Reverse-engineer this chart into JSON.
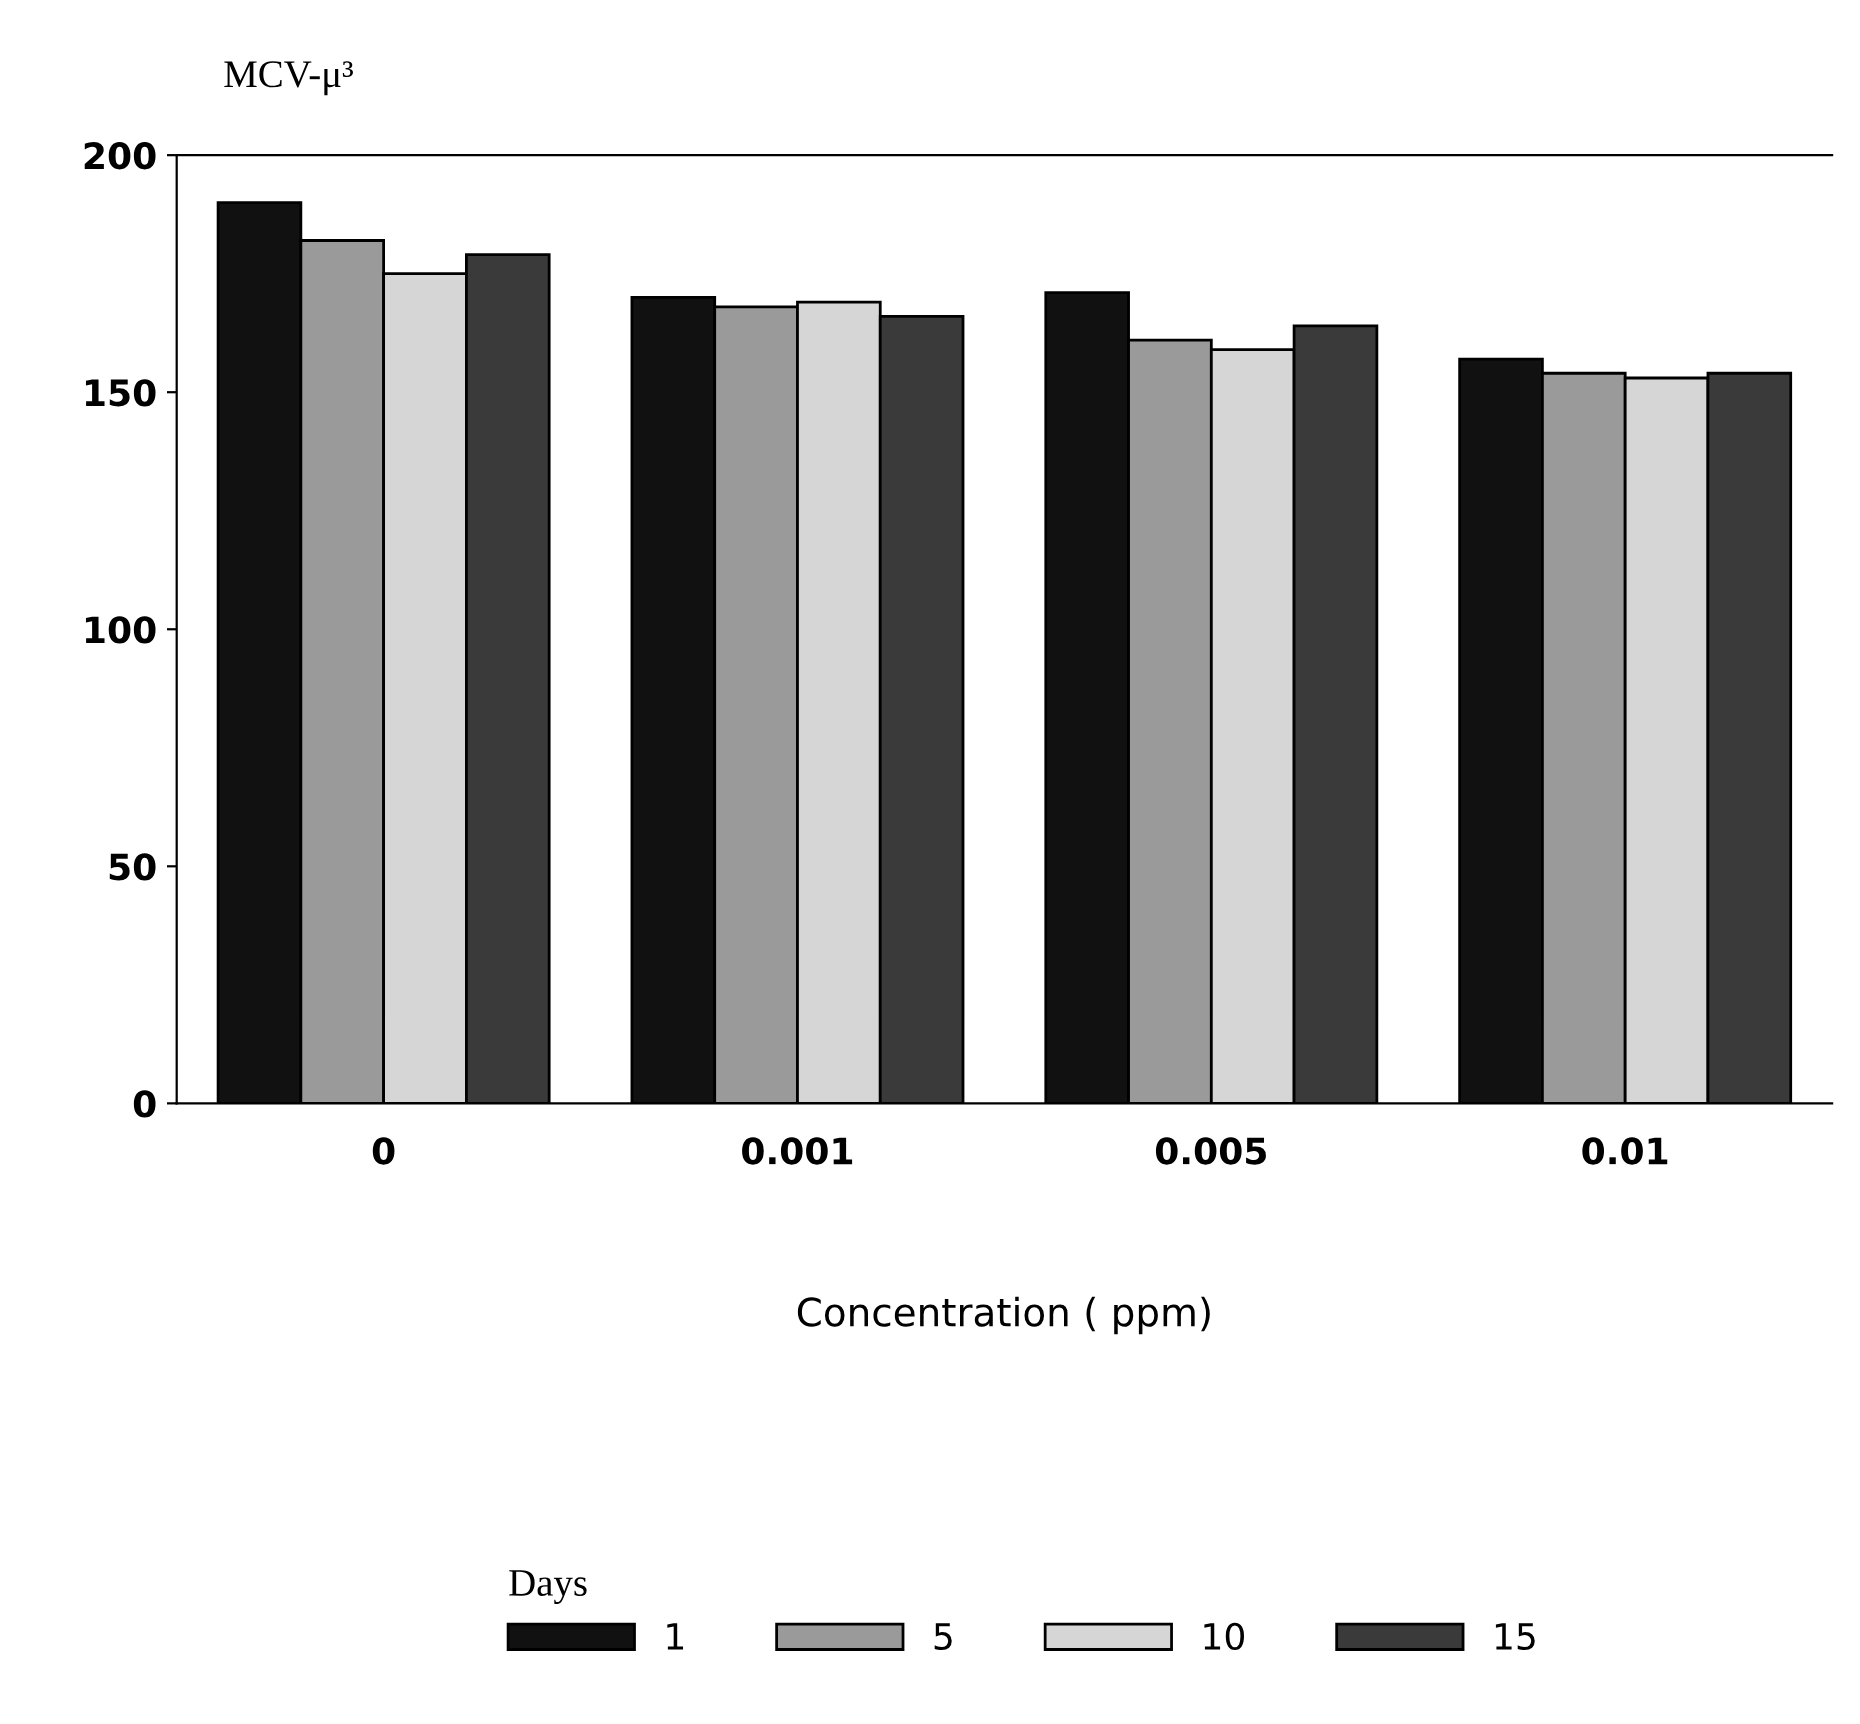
{
  "chart_data": {
    "type": "bar",
    "ylabel": "MCV-μ³",
    "xlabel": "Concentration ( ppm)",
    "legend_title": "Days",
    "categories": [
      "0",
      "0.001",
      "0.005",
      "0.01"
    ],
    "series": [
      {
        "name": "1",
        "color": "#111111",
        "values": [
          190,
          170,
          171,
          157
        ]
      },
      {
        "name": "5",
        "color": "#9a9a9a",
        "values": [
          182,
          168,
          161,
          154
        ]
      },
      {
        "name": "10",
        "color": "#d6d6d6",
        "values": [
          175,
          169,
          159,
          153
        ]
      },
      {
        "name": "15",
        "color": "#3a3a3a",
        "values": [
          179,
          166,
          164,
          154
        ]
      }
    ],
    "ylim": [
      0,
      200
    ],
    "yticks": [
      0,
      50,
      100,
      150,
      200
    ],
    "grid": false,
    "legend": "bottom"
  }
}
